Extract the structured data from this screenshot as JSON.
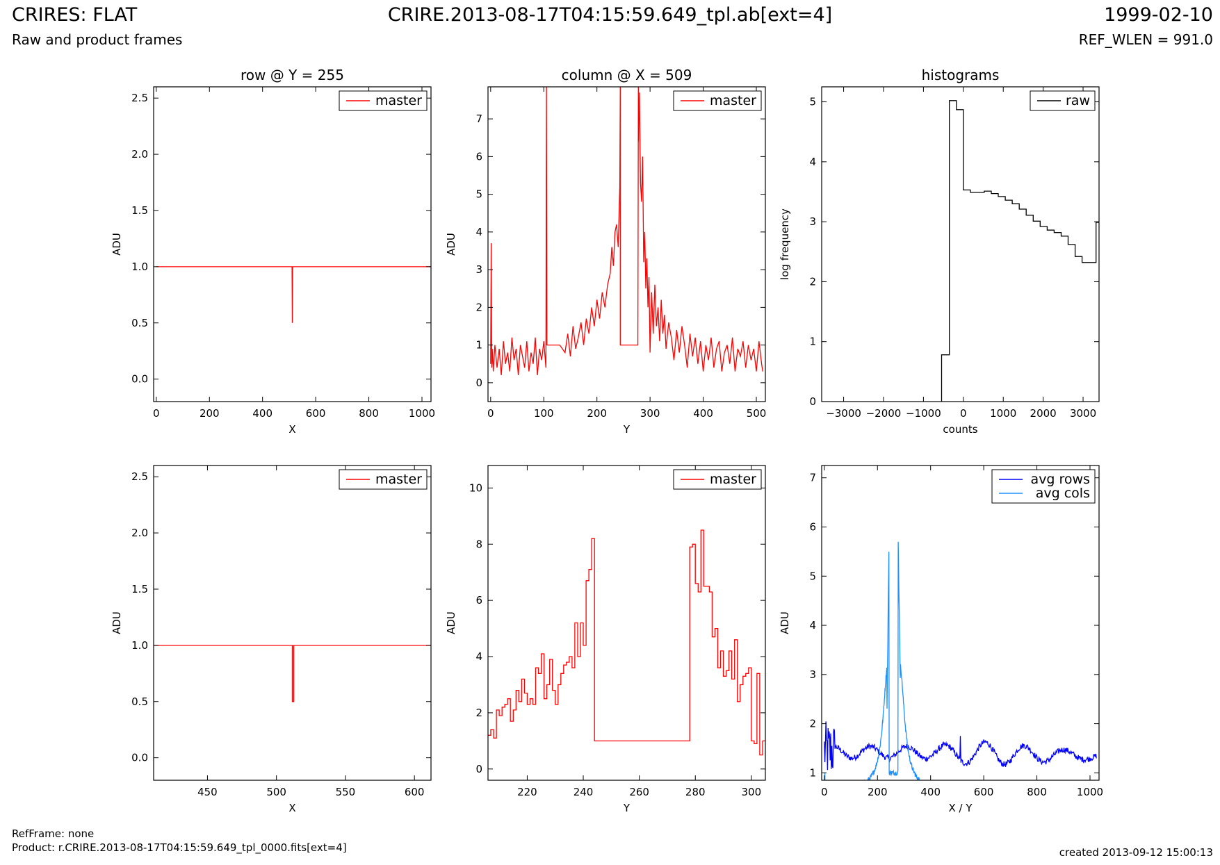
{
  "header": {
    "title": "CRIRES: FLAT",
    "subtitle": "Raw and product frames",
    "filename": "CRIRE.2013-08-17T04:15:59.649_tpl.ab[ext=4]",
    "date": "1999-02-10",
    "ref_wlen": "REF_WLEN = 991.0"
  },
  "footer": {
    "ref_frame": "RefFrame: none",
    "product": "Product: r.CRIRE.2013-08-17T04:15:59.649_tpl_0000.fits[ext=4]",
    "created": "created 2013-09-12 15:00:13"
  },
  "colors": {
    "master": "#ff0000",
    "raw": "#000000",
    "avg_rows": "#0000ff",
    "avg_cols": "#1e90ff"
  },
  "chart_data": [
    {
      "id": "row-top",
      "type": "line",
      "title": "row @ Y = 255",
      "xlabel": "X",
      "ylabel": "ADU",
      "xlim": [
        -10,
        1034
      ],
      "ylim": [
        -0.2,
        2.6
      ],
      "xticks": [
        0,
        200,
        400,
        600,
        800,
        1000
      ],
      "yticks": [
        0.0,
        0.5,
        1.0,
        1.5,
        2.0,
        2.5
      ],
      "ytick_decimals": 1,
      "legend": "top-right",
      "series": [
        {
          "name": "master",
          "color": "#ff0000",
          "step": false,
          "x": [
            0,
            511,
            512,
            512,
            513,
            1034
          ],
          "y": [
            1.0,
            1.0,
            0.5,
            0.5,
            1.0,
            1.0
          ]
        }
      ]
    },
    {
      "id": "col-top",
      "type": "line",
      "title": "column @ X = 509",
      "xlabel": "Y",
      "ylabel": "ADU",
      "xlim": [
        -5,
        517
      ],
      "ylim": [
        -0.5,
        7.85
      ],
      "xticks": [
        0,
        100,
        200,
        300,
        400,
        500
      ],
      "yticks": [
        0,
        1,
        2,
        3,
        4,
        5,
        6,
        7
      ],
      "ytick_decimals": 0,
      "legend": "top-right",
      "series": [
        {
          "name": "master",
          "color": "#ff0000",
          "step": false,
          "x": [
            0,
            1,
            2,
            3,
            5,
            8,
            12,
            16,
            20,
            24,
            28,
            32,
            36,
            40,
            44,
            48,
            52,
            56,
            60,
            64,
            68,
            72,
            76,
            80,
            84,
            88,
            92,
            96,
            100,
            104,
            105,
            105,
            106,
            106,
            110,
            120,
            130,
            140,
            145,
            150,
            155,
            160,
            165,
            170,
            175,
            180,
            185,
            190,
            195,
            200,
            205,
            210,
            215,
            220,
            225,
            228,
            231,
            234,
            237,
            240,
            243,
            244,
            244,
            250,
            260,
            270,
            277,
            278,
            278,
            280,
            282,
            284,
            286,
            288,
            290,
            292,
            294,
            296,
            298,
            300,
            303,
            306,
            309,
            312,
            315,
            318,
            321,
            324,
            327,
            330,
            335,
            340,
            345,
            350,
            355,
            360,
            365,
            370,
            375,
            380,
            385,
            390,
            395,
            400,
            405,
            410,
            415,
            420,
            425,
            430,
            435,
            440,
            445,
            450,
            455,
            460,
            465,
            470,
            475,
            480,
            485,
            490,
            495,
            500,
            505,
            510,
            512
          ],
          "y": [
            0.5,
            3.7,
            0.4,
            0.9,
            0.3,
            1.0,
            0.4,
            0.9,
            0.2,
            1.1,
            0.5,
            0.8,
            0.3,
            1.2,
            0.6,
            0.9,
            0.2,
            1.0,
            0.7,
            0.4,
            1.1,
            0.3,
            0.8,
            0.5,
            1.2,
            0.2,
            0.9,
            0.6,
            1.1,
            0.4,
            7.9,
            7.9,
            1.0,
            1.0,
            1.0,
            1.0,
            1.0,
            0.8,
            1.3,
            0.7,
            1.5,
            0.9,
            1.2,
            1.6,
            1.0,
            1.7,
            1.3,
            2.0,
            1.5,
            2.2,
            1.7,
            2.4,
            2.0,
            2.6,
            2.9,
            3.6,
            3.1,
            4.0,
            4.2,
            3.6,
            5.2,
            7.9,
            1.0,
            1.0,
            1.0,
            1.0,
            1.0,
            7.9,
            6.4,
            7.7,
            5.3,
            4.8,
            6.0,
            3.2,
            4.0,
            2.5,
            3.3,
            2.0,
            2.8,
            0.8,
            2.4,
            1.3,
            2.6,
            1.5,
            2.0,
            1.1,
            2.2,
            1.3,
            1.8,
            0.9,
            1.6,
            1.2,
            0.6,
            1.4,
            0.8,
            1.5,
            1.0,
            0.4,
            1.3,
            0.7,
            1.2,
            0.5,
            1.1,
            0.3,
            1.0,
            0.6,
            1.2,
            0.4,
            0.9,
            1.1,
            0.3,
            0.8,
            1.0,
            0.5,
            1.2,
            0.3,
            0.9,
            0.7,
            1.1,
            0.4,
            1.0,
            0.6,
            0.9,
            0.3,
            1.1,
            0.5,
            0.3
          ]
        }
      ]
    },
    {
      "id": "hist",
      "type": "line",
      "title": "histograms",
      "xlabel": "counts",
      "ylabel": "log frequency",
      "xlim": [
        -3550,
        3400
      ],
      "ylim": [
        0,
        5.25
      ],
      "xticks": [
        -3000,
        -2000,
        -1000,
        0,
        1000,
        2000,
        3000
      ],
      "yticks": [
        0,
        1,
        2,
        3,
        4,
        5
      ],
      "ytick_decimals": 0,
      "legend": "top-right",
      "series": [
        {
          "name": "raw",
          "color": "#000000",
          "step": false,
          "x": [
            -545,
            -545,
            -350,
            -350,
            -175,
            -175,
            0,
            0,
            175,
            175,
            350,
            350,
            525,
            525,
            700,
            700,
            875,
            875,
            1050,
            1050,
            1225,
            1225,
            1400,
            1400,
            1575,
            1575,
            1750,
            1750,
            1925,
            1925,
            2100,
            2100,
            2275,
            2275,
            2450,
            2450,
            2625,
            2625,
            2800,
            2800,
            2975,
            2975,
            3150,
            3150,
            3325,
            3325,
            3400
          ],
          "y": [
            0,
            0.78,
            0.78,
            5.02,
            5.02,
            4.87,
            4.87,
            3.53,
            3.53,
            3.49,
            3.49,
            3.49,
            3.49,
            3.51,
            3.51,
            3.47,
            3.47,
            3.42,
            3.42,
            3.36,
            3.36,
            3.3,
            3.3,
            3.21,
            3.21,
            3.11,
            3.11,
            3.01,
            3.01,
            2.92,
            2.92,
            2.86,
            2.86,
            2.82,
            2.82,
            2.76,
            2.76,
            2.62,
            2.62,
            2.42,
            2.42,
            2.32,
            2.32,
            2.32,
            2.32,
            2.99,
            2.99
          ]
        }
      ]
    },
    {
      "id": "row-zoom",
      "type": "line",
      "xlabel": "X",
      "ylabel": "ADU",
      "xlim": [
        411,
        612
      ],
      "ylim": [
        -0.2,
        2.6
      ],
      "xticks": [
        450,
        500,
        550,
        600
      ],
      "yticks": [
        0.0,
        0.5,
        1.0,
        1.5,
        2.0,
        2.5
      ],
      "ytick_decimals": 1,
      "legend": "top-right",
      "series": [
        {
          "name": "master",
          "color": "#ff0000",
          "step": false,
          "x": [
            411,
            511.5,
            511.5,
            512.5,
            512.5,
            513.5,
            513.5,
            612
          ],
          "y": [
            1.0,
            1.0,
            0.5,
            0.5,
            1.0,
            1.0,
            1.0,
            1.0
          ]
        }
      ]
    },
    {
      "id": "col-zoom",
      "type": "line",
      "xlabel": "Y",
      "ylabel": "ADU",
      "xlim": [
        206,
        305
      ],
      "ylim": [
        -0.4,
        10.8
      ],
      "xticks": [
        220,
        240,
        260,
        280,
        300
      ],
      "yticks": [
        0,
        2,
        4,
        6,
        8,
        10
      ],
      "ytick_decimals": 0,
      "legend": "top-right",
      "series": [
        {
          "name": "master",
          "color": "#ff0000",
          "step": true,
          "x": [
            206,
            207,
            208,
            209,
            210,
            211,
            212,
            213,
            214,
            215,
            216,
            217,
            218,
            219,
            220,
            221,
            222,
            223,
            224,
            225,
            226,
            227,
            228,
            229,
            230,
            231,
            232,
            233,
            234,
            235,
            236,
            237,
            238,
            239,
            240,
            241,
            242,
            243,
            244,
            278,
            279,
            280,
            281,
            282,
            283,
            284,
            285,
            286,
            287,
            288,
            289,
            290,
            291,
            292,
            293,
            294,
            295,
            296,
            297,
            298,
            299,
            300,
            301,
            302,
            303,
            304
          ],
          "y": [
            1.2,
            1.4,
            1.1,
            2.1,
            1.9,
            2.2,
            2.3,
            2.5,
            1.7,
            2.1,
            2.8,
            2.4,
            3.2,
            2.7,
            2.3,
            2.5,
            2.3,
            3.6,
            3.4,
            4.1,
            2.5,
            3.0,
            3.9,
            2.8,
            2.3,
            3.0,
            3.4,
            3.7,
            3.8,
            4.0,
            3.6,
            5.2,
            4.0,
            5.2,
            4.4,
            6.7,
            7.1,
            8.2,
            1.0,
            7.9,
            8.0,
            6.6,
            6.3,
            8.5,
            6.5,
            6.5,
            6.3,
            4.7,
            5.0,
            3.6,
            4.2,
            3.3,
            3.5,
            4.2,
            3.2,
            4.6,
            2.4,
            3.0,
            3.3,
            3.4,
            3.6,
            1.0,
            0.9,
            3.4,
            0.5,
            1.0
          ]
        }
      ]
    },
    {
      "id": "avg",
      "type": "line",
      "xlabel": "X / Y",
      "ylabel": "ADU",
      "xlim": [
        -10,
        1034
      ],
      "ylim": [
        0.85,
        7.25
      ],
      "xticks": [
        0,
        200,
        400,
        600,
        800,
        1000
      ],
      "yticks": [
        1,
        2,
        3,
        4,
        5,
        6,
        7
      ],
      "ytick_decimals": 0,
      "legend": "top-right",
      "series": [
        {
          "name": "avg rows",
          "color": "#0000ff",
          "kind": "avg_rows"
        },
        {
          "name": "avg cols",
          "color": "#1e90ff",
          "kind": "avg_cols"
        }
      ]
    }
  ]
}
